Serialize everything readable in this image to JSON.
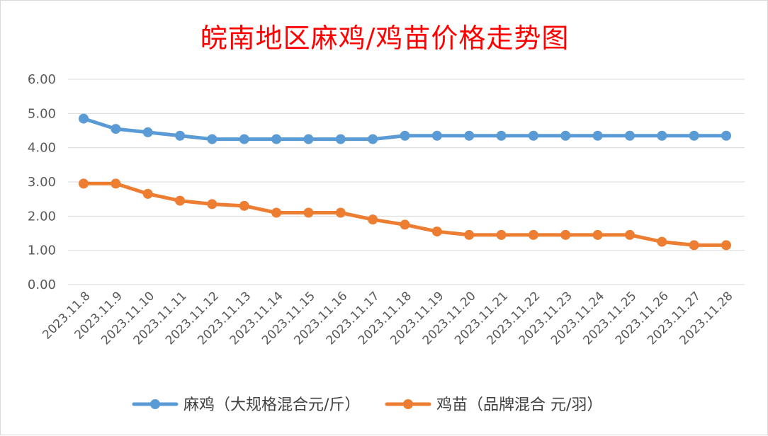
{
  "chart_data": {
    "type": "line",
    "title": "皖南地区麻鸡/鸡苗价格走势图",
    "xlabel": "",
    "ylabel": "",
    "ylim": [
      0,
      6
    ],
    "y_ticks": [
      "0.00",
      "1.00",
      "2.00",
      "3.00",
      "4.00",
      "5.00",
      "6.00"
    ],
    "grid": true,
    "legend_position": "bottom",
    "categories": [
      "2023.11.8",
      "2023.11.9",
      "2023.11.10",
      "2023.11.11",
      "2023.11.12",
      "2023.11.13",
      "2023.11.14",
      "2023.11.15",
      "2023.11.16",
      "2023.11.17",
      "2023.11.18",
      "2023.11.19",
      "2023.11.20",
      "2023.11.21",
      "2023.11.22",
      "2023.11.23",
      "2023.11.24",
      "2023.11.25",
      "2023.11.26",
      "2023.11.27",
      "2023.11.28"
    ],
    "series": [
      {
        "name": "麻鸡（大规格混合元/斤）",
        "color": "#5b9bd5",
        "values": [
          4.85,
          4.55,
          4.45,
          4.35,
          4.25,
          4.25,
          4.25,
          4.25,
          4.25,
          4.25,
          4.35,
          4.35,
          4.35,
          4.35,
          4.35,
          4.35,
          4.35,
          4.35,
          4.35,
          4.35,
          4.35
        ]
      },
      {
        "name": "鸡苗（品牌混合 元/羽）",
        "color": "#ed7d31",
        "values": [
          2.95,
          2.95,
          2.65,
          2.45,
          2.35,
          2.3,
          2.1,
          2.1,
          2.1,
          1.9,
          1.75,
          1.55,
          1.45,
          1.45,
          1.45,
          1.45,
          1.45,
          1.45,
          1.25,
          1.15,
          1.15
        ]
      }
    ]
  }
}
